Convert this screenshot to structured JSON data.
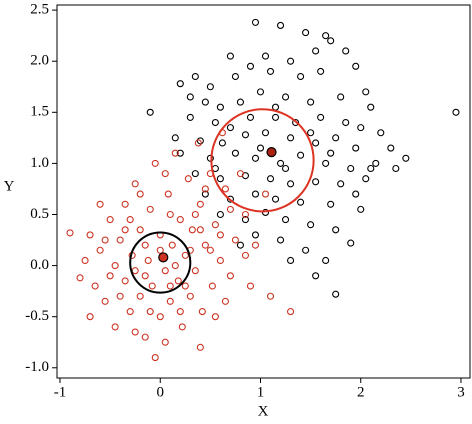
{
  "chart_data": {
    "type": "scatter",
    "x_label": "X",
    "y_label": "Y",
    "xlim": [
      -1.03,
      3.09
    ],
    "ylim": [
      -1.1,
      2.55
    ],
    "xticks": [
      -1,
      0,
      1,
      2,
      3
    ],
    "yticks": [
      {
        "value": -1,
        "label": "-1.0"
      },
      -0.5,
      {
        "value": 0,
        "label": "0.0"
      },
      0.5,
      {
        "value": 1,
        "label": "1.0"
      },
      1.5,
      {
        "value": 2,
        "label": "2.0"
      },
      2.5
    ],
    "series": [
      {
        "color": "#000000",
        "x": [
          0.95,
          1.2,
          1.45,
          1.65,
          1.7,
          1.55,
          0.7,
          1.05,
          1.3,
          1.85,
          0.35,
          0.5,
          0.2,
          0.75,
          0.9,
          1.1,
          1.4,
          1.6,
          1.95,
          2.05,
          0.45,
          0.6,
          0.8,
          1.0,
          1.25,
          1.5,
          1.8,
          2.1,
          -0.1,
          0.3,
          0.55,
          0.7,
          1.15,
          1.35,
          1.6,
          1.85,
          2.0,
          2.2,
          0.15,
          0.4,
          0.62,
          0.85,
          1.05,
          1.3,
          1.55,
          1.75,
          1.95,
          2.3,
          2.45,
          2.95,
          0.2,
          0.5,
          0.75,
          0.95,
          1.2,
          1.4,
          1.65,
          1.9,
          2.1,
          2.35,
          0.35,
          0.6,
          0.85,
          1.1,
          1.3,
          1.55,
          1.8,
          2.05,
          0.45,
          0.7,
          0.95,
          1.15,
          1.4,
          1.7,
          2.0,
          0.6,
          0.85,
          1.05,
          1.25,
          1.5,
          1.75,
          1.9,
          0.95,
          1.2,
          1.45,
          1.3,
          1.65,
          1.55,
          1.75,
          1.0,
          0.9,
          1.7,
          0.55,
          1.25,
          1.5,
          0.8,
          2.15,
          0.3,
          1.15,
          1.95
        ],
        "y": [
          2.38,
          2.35,
          2.28,
          2.25,
          2.2,
          2.1,
          2.05,
          2.05,
          2.0,
          2.1,
          1.85,
          1.75,
          1.78,
          1.85,
          1.95,
          1.9,
          1.85,
          1.9,
          1.95,
          1.7,
          1.6,
          1.55,
          1.6,
          1.7,
          1.65,
          1.6,
          1.65,
          1.55,
          1.5,
          1.45,
          1.4,
          1.35,
          1.45,
          1.4,
          1.45,
          1.4,
          1.35,
          1.3,
          1.25,
          1.22,
          1.2,
          1.28,
          1.3,
          1.25,
          1.2,
          1.25,
          1.15,
          1.15,
          1.05,
          1.5,
          1.1,
          1.05,
          1.1,
          1.05,
          1.0,
          1.08,
          1.0,
          0.95,
          0.95,
          0.95,
          0.9,
          0.85,
          0.88,
          0.85,
          0.8,
          0.82,
          0.8,
          0.85,
          0.7,
          0.65,
          0.7,
          0.65,
          0.62,
          0.6,
          0.55,
          0.5,
          0.45,
          0.52,
          0.45,
          0.4,
          0.35,
          0.22,
          0.3,
          0.25,
          0.15,
          0.05,
          0.05,
          -0.1,
          -0.28,
          1.15,
          1.45,
          1.1,
          0.95,
          0.95,
          1.3,
          0.2,
          1.0,
          1.65,
          1.55,
          0.7
        ]
      },
      {
        "color": "#cc3322",
        "x": [
          -0.9,
          -0.75,
          -0.8,
          -0.7,
          -0.65,
          -0.6,
          -0.55,
          -0.5,
          -0.45,
          -0.45,
          -0.4,
          -0.35,
          -0.35,
          -0.3,
          -0.28,
          -0.25,
          -0.2,
          -0.2,
          -0.15,
          -0.12,
          -0.1,
          -0.08,
          -0.05,
          0.0,
          0.0,
          0.05,
          0.08,
          0.1,
          0.12,
          0.15,
          0.18,
          0.2,
          0.22,
          0.25,
          0.28,
          0.3,
          0.32,
          0.35,
          0.38,
          0.4,
          0.42,
          0.45,
          0.5,
          0.52,
          0.55,
          0.6,
          0.62,
          0.65,
          0.7,
          0.75,
          0.8,
          0.85,
          0.9,
          0.95,
          1.05,
          1.1,
          1.3,
          -0.05,
          0.4,
          -0.25,
          0.05,
          -0.6,
          -0.15,
          0.1,
          -0.3,
          0.25,
          0.45,
          -0.4,
          0.6,
          -0.1,
          0.15,
          -0.2,
          0.35,
          0.7,
          -0.5,
          0.2,
          0.5,
          -0.35,
          0.05,
          -0.7,
          0.3,
          -0.15,
          0.65,
          0.0,
          -0.25,
          0.1,
          0.4,
          -0.55,
          0.85,
          0.55
        ],
        "y": [
          0.32,
          0.05,
          -0.12,
          0.3,
          -0.2,
          0.15,
          -0.35,
          0.45,
          0.0,
          -0.6,
          0.25,
          -0.15,
          0.6,
          -0.45,
          0.1,
          0.8,
          -0.3,
          0.35,
          -0.7,
          0.05,
          0.55,
          -0.2,
          1.0,
          -0.5,
          0.3,
          -0.05,
          0.7,
          -0.35,
          0.2,
          1.1,
          -0.15,
          0.45,
          -0.6,
          0.1,
          0.85,
          -0.3,
          0.35,
          -0.05,
          1.2,
          0.6,
          -0.45,
          0.2,
          0.9,
          -0.2,
          0.4,
          0.05,
          1.3,
          -0.35,
          0.55,
          0.25,
          0.9,
          0.5,
          -0.2,
          0.2,
          0.7,
          -0.3,
          -0.45,
          -0.9,
          -0.8,
          -0.65,
          -0.75,
          0.6,
          0.2,
          0.5,
          0.45,
          -0.2,
          0.75,
          -0.3,
          0.3,
          -0.45,
          0.0,
          0.7,
          0.5,
          -0.1,
          -0.1,
          -0.45,
          0.15,
          0.35,
          0.9,
          -0.5,
          0.15,
          -0.1,
          0.75,
          0.15,
          -0.05,
          -0.2,
          0.35,
          0.25,
          0.1,
          -0.5
        ]
      }
    ],
    "circles": [
      {
        "cx": 1.02,
        "cy": 1.03,
        "r": 0.51,
        "color": "#dd3322"
      },
      {
        "cx": 0.0,
        "cy": 0.03,
        "r": 0.3,
        "color": "#000000"
      }
    ],
    "centers": [
      {
        "x": 1.11,
        "y": 1.11,
        "color": "#aa2211"
      },
      {
        "x": 0.03,
        "y": 0.08,
        "color": "#cc3322"
      }
    ]
  }
}
